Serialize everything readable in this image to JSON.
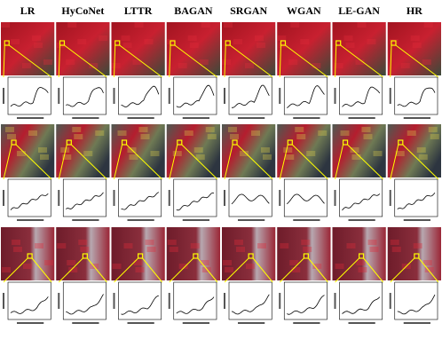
{
  "figure": {
    "columns": [
      "LR",
      "HyCoNet",
      "LTTR",
      "BAGAN",
      "SRGAN",
      "WGAN",
      "LE-GAN",
      "HR"
    ]
  }
}
